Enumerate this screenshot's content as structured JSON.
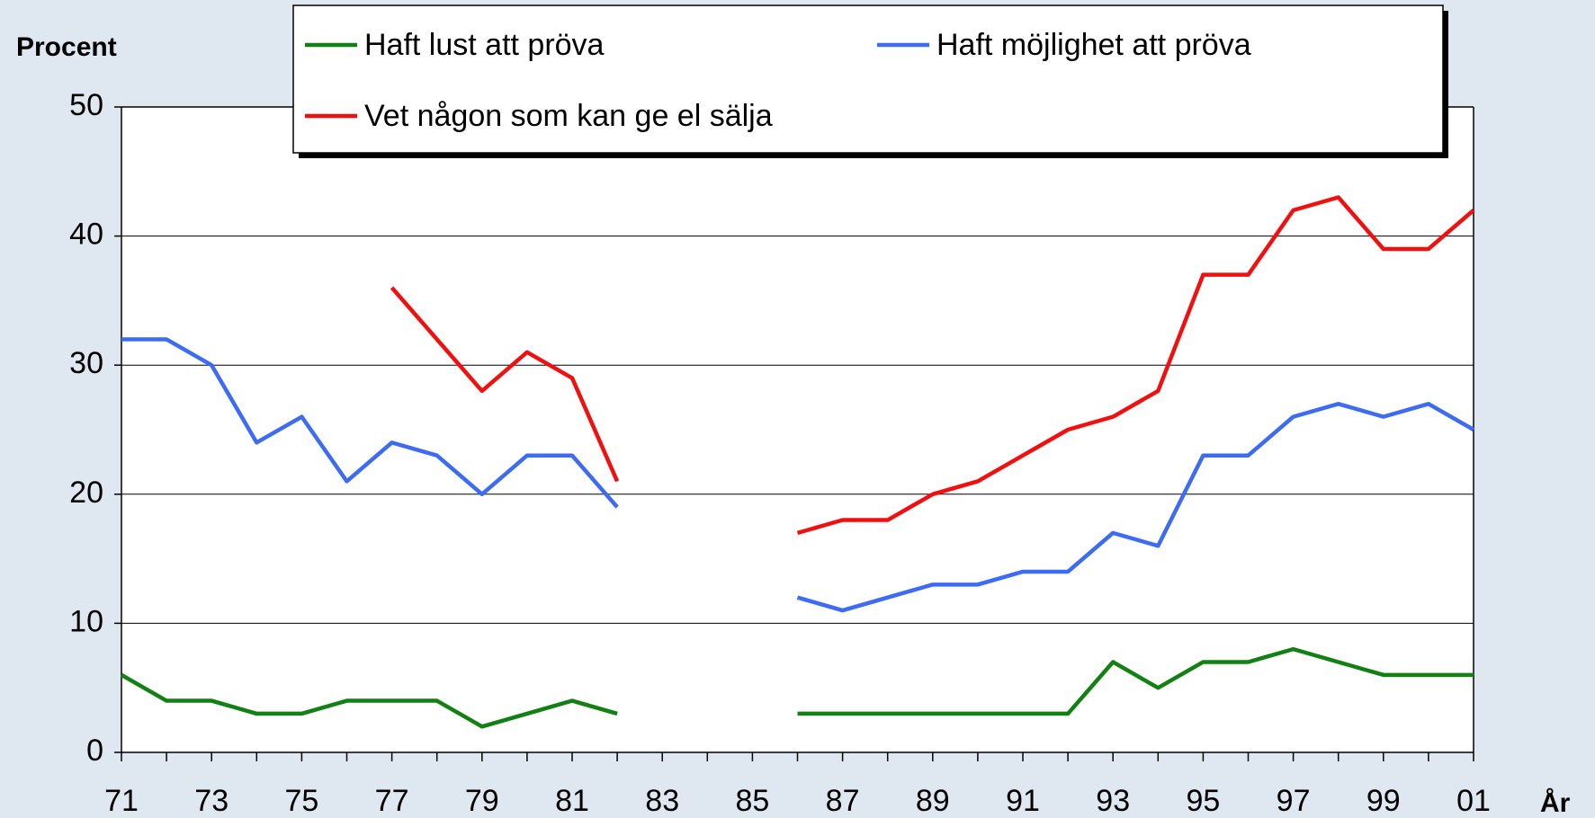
{
  "chart_data": {
    "type": "line",
    "y_label": "Procent",
    "x_label": "År",
    "categories": [
      "71",
      null,
      "73",
      null,
      "75",
      null,
      "77",
      null,
      "79",
      null,
      "81",
      null,
      "83",
      null,
      "85",
      null,
      "87",
      null,
      "89",
      null,
      "91",
      null,
      "93",
      null,
      "95",
      null,
      "97",
      null,
      "99",
      null,
      "01"
    ],
    "series": [
      {
        "name": "Haft lust att pröva",
        "color": "#138013",
        "values": [
          6,
          4,
          4,
          3,
          3,
          4,
          4,
          4,
          2,
          3,
          4,
          3,
          null,
          null,
          null,
          3,
          3,
          3,
          3,
          3,
          3,
          3,
          7,
          5,
          7,
          7,
          8,
          7,
          6,
          6,
          6
        ]
      },
      {
        "name": "Haft möjlighet att pröva",
        "color": "#3d6cf2",
        "values": [
          32,
          32,
          30,
          24,
          26,
          21,
          24,
          23,
          20,
          23,
          23,
          19,
          null,
          null,
          null,
          12,
          11,
          12,
          13,
          13,
          14,
          14,
          17,
          16,
          23,
          23,
          26,
          27,
          26,
          27,
          25
        ]
      },
      {
        "name": "Vet någon som kan ge el sälja",
        "color": "#f01010",
        "values": [
          null,
          null,
          null,
          null,
          null,
          null,
          36,
          32,
          28,
          31,
          29,
          21,
          null,
          null,
          null,
          17,
          18,
          18,
          20,
          21,
          23,
          25,
          26,
          28,
          37,
          37,
          42,
          43,
          39,
          39,
          42
        ]
      }
    ],
    "ylim": [
      0,
      50
    ],
    "yticks": [
      0,
      10,
      20,
      30,
      40,
      50
    ],
    "grid": true,
    "legend": "top"
  }
}
